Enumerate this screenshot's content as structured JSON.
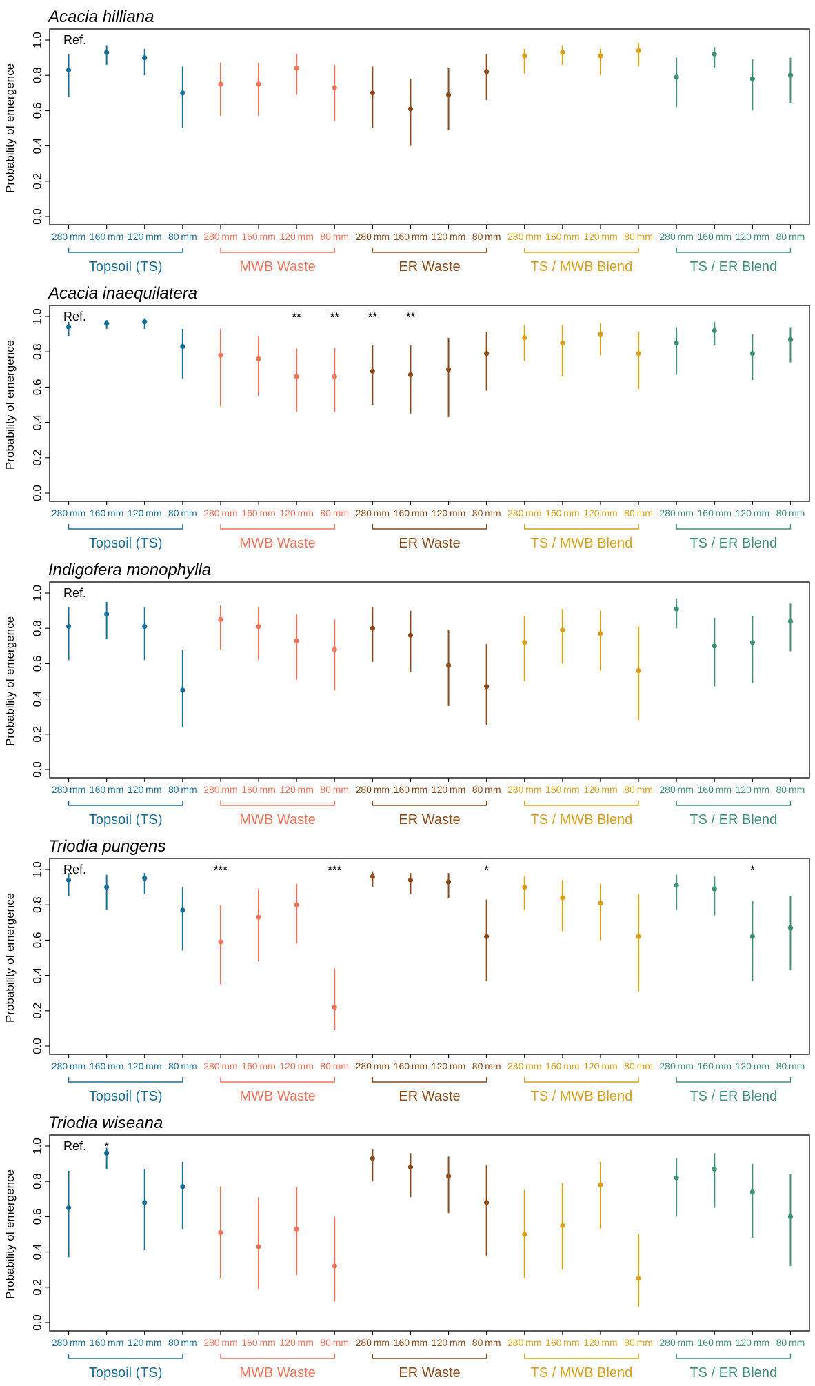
{
  "figure": {
    "ylabel": "Probability of emergence",
    "ref_label": "Ref.",
    "y_ticks": [
      "0.0",
      "0.2",
      "0.4",
      "0.6",
      "0.8",
      "1.0"
    ],
    "depth_labels": [
      "280",
      "160",
      "120",
      "80"
    ],
    "unit": "mm",
    "groups": [
      {
        "name": "Topsoil (TS)",
        "color": "#1a6f96"
      },
      {
        "name": "MWB Waste",
        "color": "#f0735a"
      },
      {
        "name": "ER Waste",
        "color": "#8a4a1a"
      },
      {
        "name": "TS / MWB Blend",
        "color": "#d9a01a"
      },
      {
        "name": "TS / ER Blend",
        "color": "#3f9078"
      }
    ]
  },
  "chart_data": [
    {
      "type": "scatter",
      "title": "Acacia hilliana",
      "ylabel": "Probability of emergence",
      "ylim": [
        0,
        1.05
      ],
      "categories": [
        "280mm",
        "160mm",
        "120mm",
        "80mm",
        "280mm",
        "160mm",
        "120mm",
        "80mm",
        "280mm",
        "160mm",
        "120mm",
        "80mm",
        "280mm",
        "160mm",
        "120mm",
        "80mm",
        "280mm",
        "160mm",
        "120mm",
        "80mm"
      ],
      "values": [
        0.83,
        0.93,
        0.9,
        0.7,
        0.75,
        0.75,
        0.84,
        0.73,
        0.7,
        0.61,
        0.69,
        0.82,
        0.91,
        0.93,
        0.91,
        0.94,
        0.79,
        0.92,
        0.78,
        0.8
      ],
      "lower": [
        0.68,
        0.86,
        0.8,
        0.5,
        0.57,
        0.57,
        0.69,
        0.54,
        0.5,
        0.4,
        0.49,
        0.66,
        0.81,
        0.86,
        0.8,
        0.85,
        0.62,
        0.84,
        0.6,
        0.64
      ],
      "upper": [
        0.92,
        0.97,
        0.95,
        0.85,
        0.87,
        0.87,
        0.92,
        0.86,
        0.85,
        0.78,
        0.84,
        0.92,
        0.95,
        0.97,
        0.95,
        0.98,
        0.9,
        0.96,
        0.89,
        0.9
      ],
      "significance": [
        "",
        "",
        "",
        "",
        "",
        "",
        "",
        "",
        "",
        "",
        "",
        "",
        "",
        "",
        "",
        "",
        "",
        "",
        "",
        ""
      ]
    },
    {
      "type": "scatter",
      "title": "Acacia inaequilatera",
      "ylabel": "Probability of emergence",
      "ylim": [
        0,
        1.05
      ],
      "categories": [
        "280mm",
        "160mm",
        "120mm",
        "80mm",
        "280mm",
        "160mm",
        "120mm",
        "80mm",
        "280mm",
        "160mm",
        "120mm",
        "80mm",
        "280mm",
        "160mm",
        "120mm",
        "80mm",
        "280mm",
        "160mm",
        "120mm",
        "80mm"
      ],
      "values": [
        0.94,
        0.96,
        0.97,
        0.83,
        0.78,
        0.76,
        0.66,
        0.66,
        0.69,
        0.67,
        0.7,
        0.79,
        0.88,
        0.85,
        0.9,
        0.79,
        0.85,
        0.92,
        0.79,
        0.87
      ],
      "lower": [
        0.89,
        0.93,
        0.93,
        0.65,
        0.49,
        0.55,
        0.46,
        0.46,
        0.5,
        0.45,
        0.43,
        0.58,
        0.75,
        0.66,
        0.78,
        0.59,
        0.67,
        0.84,
        0.64,
        0.74
      ],
      "upper": [
        0.97,
        0.98,
        0.99,
        0.93,
        0.93,
        0.89,
        0.82,
        0.82,
        0.84,
        0.84,
        0.88,
        0.91,
        0.95,
        0.95,
        0.96,
        0.91,
        0.94,
        0.97,
        0.9,
        0.94
      ],
      "significance": [
        "",
        "",
        "",
        "",
        "",
        "",
        "**",
        "**",
        "**",
        "**",
        "",
        "",
        "",
        "",
        "",
        "",
        "",
        "",
        "",
        ""
      ]
    },
    {
      "type": "scatter",
      "title": "Indigofera monophylla",
      "ylabel": "Probability of emergence",
      "ylim": [
        0,
        1.05
      ],
      "categories": [
        "280mm",
        "160mm",
        "120mm",
        "80mm",
        "280mm",
        "160mm",
        "120mm",
        "80mm",
        "280mm",
        "160mm",
        "120mm",
        "80mm",
        "280mm",
        "160mm",
        "120mm",
        "80mm",
        "280mm",
        "160mm",
        "120mm",
        "80mm"
      ],
      "values": [
        0.81,
        0.88,
        0.81,
        0.45,
        0.85,
        0.81,
        0.73,
        0.68,
        0.8,
        0.76,
        0.59,
        0.47,
        0.72,
        0.79,
        0.77,
        0.56,
        0.91,
        0.7,
        0.72,
        0.84
      ],
      "lower": [
        0.62,
        0.74,
        0.62,
        0.24,
        0.68,
        0.62,
        0.51,
        0.45,
        0.61,
        0.55,
        0.36,
        0.25,
        0.5,
        0.6,
        0.56,
        0.28,
        0.8,
        0.47,
        0.49,
        0.67
      ],
      "upper": [
        0.92,
        0.95,
        0.92,
        0.68,
        0.93,
        0.92,
        0.88,
        0.85,
        0.92,
        0.9,
        0.79,
        0.71,
        0.87,
        0.91,
        0.9,
        0.81,
        0.97,
        0.86,
        0.87,
        0.94
      ],
      "significance": [
        "",
        "",
        "",
        "",
        "",
        "",
        "",
        "",
        "",
        "",
        "",
        "",
        "",
        "",
        "",
        "",
        "",
        "",
        "",
        ""
      ]
    },
    {
      "type": "scatter",
      "title": "Triodia pungens",
      "ylabel": "Probability of emergence",
      "ylim": [
        0,
        1.05
      ],
      "categories": [
        "280mm",
        "160mm",
        "120mm",
        "80mm",
        "280mm",
        "160mm",
        "120mm",
        "80mm",
        "280mm",
        "160mm",
        "120mm",
        "80mm",
        "280mm",
        "160mm",
        "120mm",
        "80mm",
        "280mm",
        "160mm",
        "120mm",
        "80mm"
      ],
      "values": [
        0.94,
        0.9,
        0.95,
        0.77,
        0.59,
        0.73,
        0.8,
        0.22,
        0.96,
        0.94,
        0.93,
        0.62,
        0.9,
        0.84,
        0.81,
        0.62,
        0.91,
        0.89,
        0.62,
        0.67
      ],
      "lower": [
        0.85,
        0.77,
        0.86,
        0.54,
        0.35,
        0.48,
        0.58,
        0.09,
        0.9,
        0.86,
        0.84,
        0.37,
        0.77,
        0.65,
        0.6,
        0.31,
        0.77,
        0.74,
        0.37,
        0.43
      ],
      "upper": [
        0.98,
        0.97,
        0.98,
        0.9,
        0.8,
        0.89,
        0.92,
        0.44,
        0.99,
        0.98,
        0.98,
        0.83,
        0.96,
        0.94,
        0.92,
        0.86,
        0.97,
        0.96,
        0.82,
        0.85
      ],
      "significance": [
        "",
        "",
        "",
        "",
        "***",
        "",
        "",
        "***",
        "",
        "",
        "",
        "*",
        "",
        "",
        "",
        "",
        "",
        "",
        "*",
        ""
      ]
    },
    {
      "type": "scatter",
      "title": "Triodia wiseana",
      "ylabel": "Probability of emergence",
      "ylim": [
        0,
        1.05
      ],
      "categories": [
        "280mm",
        "160mm",
        "120mm",
        "80mm",
        "280mm",
        "160mm",
        "120mm",
        "80mm",
        "280mm",
        "160mm",
        "120mm",
        "80mm",
        "280mm",
        "160mm",
        "120mm",
        "80mm",
        "280mm",
        "160mm",
        "120mm",
        "80mm"
      ],
      "values": [
        0.65,
        0.96,
        0.68,
        0.77,
        0.51,
        0.43,
        0.53,
        0.32,
        0.93,
        0.88,
        0.83,
        0.68,
        0.5,
        0.55,
        0.78,
        0.25,
        0.82,
        0.87,
        0.74,
        0.6
      ],
      "lower": [
        0.37,
        0.87,
        0.41,
        0.53,
        0.25,
        0.19,
        0.27,
        0.12,
        0.8,
        0.71,
        0.62,
        0.38,
        0.25,
        0.3,
        0.53,
        0.09,
        0.6,
        0.65,
        0.48,
        0.32
      ],
      "upper": [
        0.86,
        0.99,
        0.87,
        0.91,
        0.77,
        0.71,
        0.77,
        0.6,
        0.98,
        0.96,
        0.94,
        0.89,
        0.75,
        0.79,
        0.91,
        0.5,
        0.93,
        0.96,
        0.9,
        0.84
      ],
      "significance": [
        "",
        "*",
        "",
        "",
        "",
        "",
        "",
        "",
        "",
        "",
        "",
        "",
        "",
        "",
        "",
        "",
        "",
        "",
        "",
        ""
      ]
    }
  ]
}
